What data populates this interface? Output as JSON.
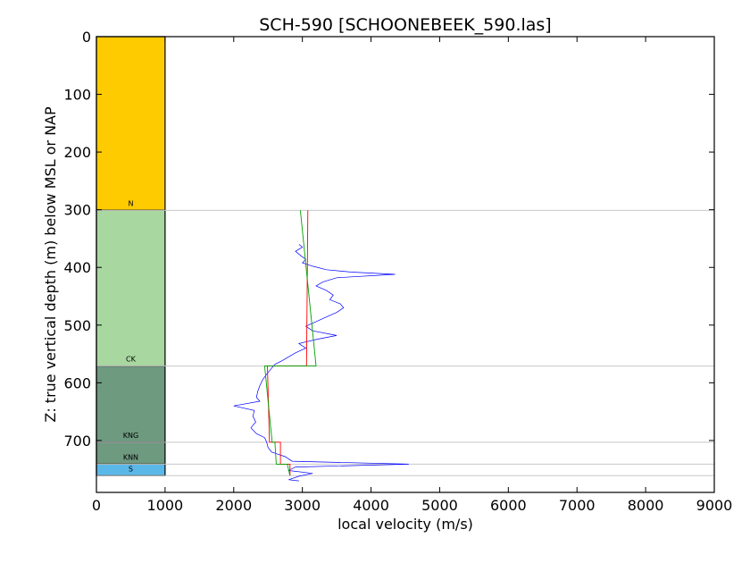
{
  "chart_data": {
    "type": "line",
    "title": "SCH-590 [SCHOONEBEEK_590.las]",
    "xlabel": "local velocity (m/s)",
    "ylabel": "Z: true vertical depth (m) below MSL or NAP",
    "xlim": [
      0,
      9000
    ],
    "ylim": [
      790,
      0
    ],
    "x_ticks": [
      "0",
      "1000",
      "2000",
      "3000",
      "4000",
      "5000",
      "6000",
      "7000",
      "8000",
      "9000"
    ],
    "y_ticks": [
      "0",
      "100",
      "200",
      "300",
      "400",
      "500",
      "600",
      "700"
    ],
    "grid": "horizontal lines at formation tops only",
    "formations": [
      {
        "label": "N",
        "top": 0,
        "base": 301,
        "color": "#fdcb00"
      },
      {
        "label": "CK",
        "top": 301,
        "base": 571,
        "color": "#a8d8a0"
      },
      {
        "label": "KNG",
        "top": 571,
        "base": 703,
        "color": "#6e9a80"
      },
      {
        "label": "KNN",
        "top": 703,
        "base": 741,
        "color": "#6e9a80"
      },
      {
        "label": "S",
        "top": 741,
        "base": 761,
        "color": "#5ab8e8"
      }
    ],
    "formation_column_x": [
      0,
      1000
    ],
    "formation_tops": [
      301,
      571,
      703,
      741,
      761
    ],
    "series": [
      {
        "color": "#0000ff",
        "points": [
          [
            2950,
            360
          ],
          [
            3000,
            365
          ],
          [
            2900,
            372
          ],
          [
            2980,
            380
          ],
          [
            3050,
            386
          ],
          [
            3000,
            392
          ],
          [
            3150,
            398
          ],
          [
            3350,
            404
          ],
          [
            3700,
            408
          ],
          [
            4350,
            412
          ],
          [
            3500,
            418
          ],
          [
            3300,
            425
          ],
          [
            3200,
            432
          ],
          [
            3350,
            440
          ],
          [
            3450,
            448
          ],
          [
            3400,
            456
          ],
          [
            3550,
            463
          ],
          [
            3600,
            470
          ],
          [
            3500,
            478
          ],
          [
            3350,
            486
          ],
          [
            3200,
            494
          ],
          [
            3050,
            502
          ],
          [
            3150,
            510
          ],
          [
            3500,
            518
          ],
          [
            3200,
            525
          ],
          [
            2950,
            532
          ],
          [
            3050,
            540
          ],
          [
            2900,
            548
          ],
          [
            2800,
            555
          ],
          [
            2700,
            562
          ],
          [
            2600,
            568
          ],
          [
            2550,
            575
          ],
          [
            2480,
            585
          ],
          [
            2420,
            595
          ],
          [
            2380,
            605
          ],
          [
            2350,
            615
          ],
          [
            2330,
            625
          ],
          [
            2380,
            632
          ],
          [
            2000,
            640
          ],
          [
            2300,
            648
          ],
          [
            2280,
            658
          ],
          [
            2320,
            668
          ],
          [
            2250,
            678
          ],
          [
            2330,
            688
          ],
          [
            2450,
            695
          ],
          [
            2480,
            703
          ],
          [
            2500,
            712
          ],
          [
            2550,
            720
          ],
          [
            2750,
            728
          ],
          [
            2850,
            736
          ],
          [
            4550,
            741
          ],
          [
            2900,
            746
          ],
          [
            2800,
            752
          ],
          [
            3150,
            757
          ],
          [
            2950,
            762
          ],
          [
            2800,
            768
          ],
          [
            2950,
            770
          ]
        ]
      },
      {
        "color": "#ff0000",
        "points": [
          [
            3080,
            301
          ],
          [
            3060,
            571
          ],
          [
            2490,
            571
          ],
          [
            2520,
            703
          ],
          [
            2680,
            703
          ],
          [
            2680,
            741
          ],
          [
            2820,
            741
          ],
          [
            2820,
            761
          ]
        ]
      },
      {
        "color": "#00a000",
        "points": [
          [
            2970,
            301
          ],
          [
            3200,
            571
          ],
          [
            2450,
            571
          ],
          [
            2560,
            703
          ],
          [
            2600,
            703
          ],
          [
            2620,
            741
          ],
          [
            2780,
            741
          ],
          [
            2820,
            761
          ]
        ]
      }
    ]
  }
}
